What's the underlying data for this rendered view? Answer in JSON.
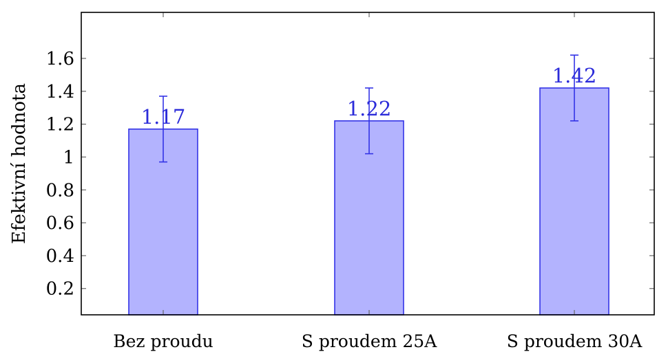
{
  "chart_data": {
    "type": "bar",
    "categories": [
      "Bez proudu",
      "S proudem 25A",
      "S proudem 30A"
    ],
    "values": [
      1.17,
      1.22,
      1.42
    ],
    "error": [
      0.2,
      0.2,
      0.2
    ],
    "data_labels": [
      "1.17",
      "1.22",
      "1.42"
    ],
    "title": "",
    "xlabel": "",
    "ylabel": "Efektivní hodnota",
    "ylim": [
      0.04,
      1.88
    ],
    "yticks": [
      0.2,
      0.4,
      0.6,
      0.8,
      1.0,
      1.2,
      1.4,
      1.6
    ],
    "ytick_labels": [
      "0.2",
      "0.4",
      "0.6",
      "0.8",
      "1",
      "1.2",
      "1.4",
      "1.6"
    ],
    "grid": false,
    "legend": "none",
    "colors": {
      "bar_fill": "#b3b3fe",
      "bar_stroke": "#3333e6",
      "error_bar": "#3333e6",
      "data_label": "#2b2bd9",
      "axis": "#000000",
      "tick": "#666666"
    }
  }
}
